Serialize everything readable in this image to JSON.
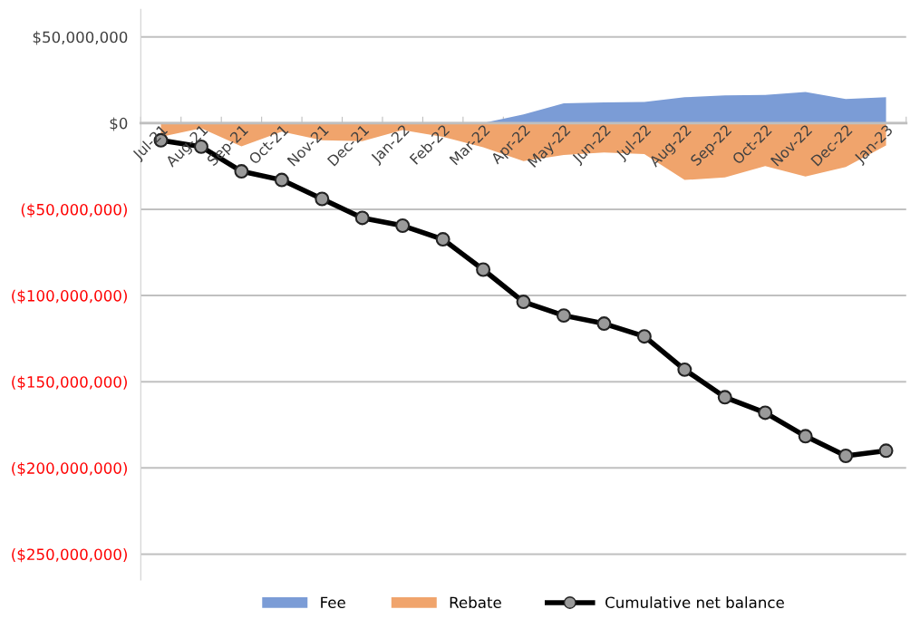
{
  "chart_data": {
    "type": "area",
    "categories": [
      "Jul-21",
      "Aug-21",
      "Sep-21",
      "Oct-21",
      "Nov-21",
      "Dec-21",
      "Jan-22",
      "Feb-22",
      "Mar-22",
      "Apr-22",
      "May-22",
      "Jun-22",
      "Jul-22",
      "Aug-22",
      "Sep-22",
      "Oct-22",
      "Nov-22",
      "Dec-22",
      "Jan-23"
    ],
    "series": [
      {
        "name": "Fee",
        "color": "#7b9cd6",
        "values": [
          0,
          0,
          0,
          0,
          0,
          0,
          0,
          0,
          0,
          5000000,
          11400000,
          12000000,
          12300000,
          15000000,
          16000000,
          16300000,
          18000000,
          14000000,
          15000000
        ]
      },
      {
        "name": "Rebate",
        "color": "#f0a46c",
        "values": [
          -8000000,
          -3000000,
          -13500000,
          -5000000,
          -10000000,
          -10500000,
          -4000000,
          -8000000,
          -14000000,
          -22000000,
          -18500000,
          -17000000,
          -18000000,
          -33000000,
          -31500000,
          -25000000,
          -31000000,
          -25500000,
          -13000000
        ]
      },
      {
        "name": "Cumulative net balance",
        "type": "line",
        "color": "#000000",
        "marker": "circle",
        "values": [
          -10000000,
          -13700000,
          -28000000,
          -33000000,
          -44000000,
          -55000000,
          -59500000,
          -67400000,
          -85000000,
          -103700000,
          -111600000,
          -116300000,
          -123700000,
          -143000000,
          -159000000,
          -168000000,
          -181600000,
          -193000000,
          -190000000
        ]
      }
    ],
    "ylim": [
      -265000000,
      66000000
    ],
    "yticks": [
      {
        "value": 50000000,
        "label": "$50,000,000"
      },
      {
        "value": 0,
        "label": "$0"
      },
      {
        "value": -50000000,
        "label": "($50,000,000)"
      },
      {
        "value": -100000000,
        "label": "($100,000,000)"
      },
      {
        "value": -150000000,
        "label": "($150,000,000)"
      },
      {
        "value": -200000000,
        "label": "($200,000,000)"
      },
      {
        "value": -250000000,
        "label": "($250,000,000)"
      }
    ],
    "grid": "y",
    "legend": "bottom"
  }
}
